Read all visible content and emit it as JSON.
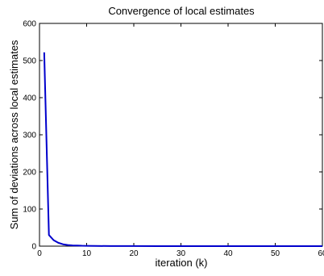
{
  "chart_data": {
    "type": "line",
    "title": "Convergence of local estimates",
    "xlabel": "iteration (k)",
    "ylabel": "Sum of deviations across local estimates",
    "xlim": [
      0,
      60
    ],
    "ylim": [
      0,
      600
    ],
    "x_ticks": [
      "0",
      "10",
      "20",
      "30",
      "40",
      "50",
      "60"
    ],
    "y_ticks": [
      "0",
      "100",
      "200",
      "300",
      "400",
      "500",
      "600"
    ],
    "grid": false,
    "series": [
      {
        "color": "#0000cc",
        "x": [
          1,
          2,
          3,
          4,
          5,
          6,
          7,
          8,
          9,
          10,
          12,
          15,
          20,
          25,
          30,
          35,
          40,
          45,
          50,
          55,
          60
        ],
        "y": [
          522,
          30,
          16,
          9,
          5,
          3,
          2,
          1.5,
          1,
          0.8,
          0.5,
          0.3,
          0.2,
          0.1,
          0.1,
          0.1,
          0.1,
          0.1,
          0.1,
          0.1,
          0.1
        ]
      }
    ]
  }
}
